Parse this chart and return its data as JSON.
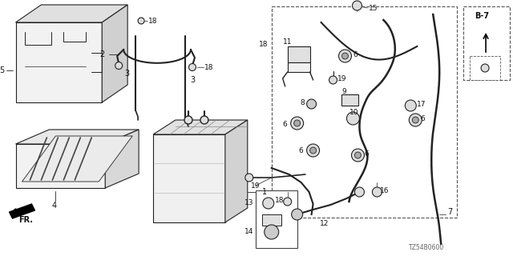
{
  "part_code": "TZ54B0600",
  "bg_color": "#ffffff",
  "line_color": "#222222",
  "fig_width": 6.4,
  "fig_height": 3.2,
  "dpi": 100
}
